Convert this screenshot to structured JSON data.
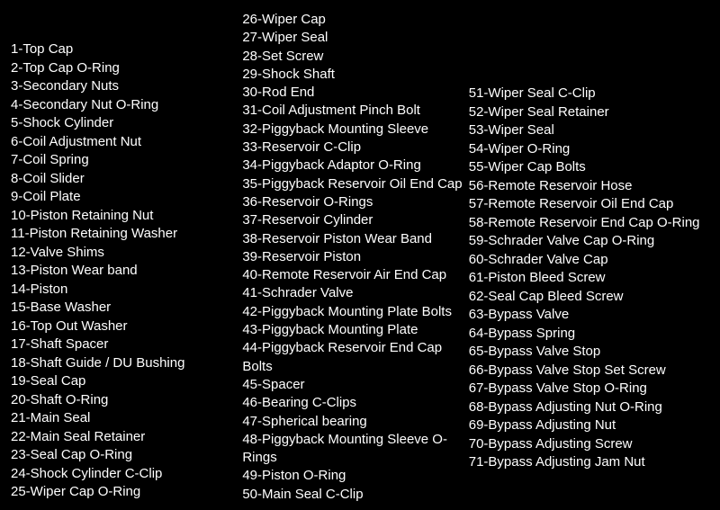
{
  "columns": [
    {
      "class": "col1",
      "items": [
        "1-Top Cap",
        "2-Top Cap O-Ring",
        "3-Secondary Nuts",
        "4-Secondary Nut O-Ring",
        "5-Shock Cylinder",
        "6-Coil Adjustment Nut",
        "7-Coil Spring",
        "8-Coil Slider",
        "9-Coil Plate",
        "10-Piston Retaining Nut",
        "11-Piston Retaining Washer",
        "12-Valve Shims",
        "13-Piston Wear band",
        "14-Piston",
        "15-Base Washer",
        "16-Top Out Washer",
        "17-Shaft Spacer",
        "18-Shaft Guide / DU Bushing",
        "19-Seal Cap",
        "20-Shaft O-Ring",
        "21-Main Seal",
        "22-Main Seal Retainer",
        "23-Seal Cap O-Ring",
        "24-Shock Cylinder C-Clip",
        "25-Wiper Cap O-Ring"
      ]
    },
    {
      "class": "col2",
      "items": [
        "26-Wiper Cap",
        "27-Wiper Seal",
        "28-Set Screw",
        "29-Shock Shaft",
        "30-Rod End",
        "31-Coil Adjustment Pinch Bolt",
        "32-Piggyback Mounting Sleeve",
        "33-Reservoir C-Clip",
        "34-Piggyback Adaptor O-Ring",
        "35-Piggyback Reservoir Oil End Cap",
        "36-Reservoir O-Rings",
        "37-Reservoir Cylinder",
        "38-Reservoir Piston Wear Band",
        "39-Reservoir Piston",
        "40-Remote Reservoir Air End Cap",
        "41-Schrader Valve",
        "42-Piggyback Mounting Plate Bolts",
        "43-Piggyback Mounting Plate",
        "44-Piggyback Reservoir End Cap Bolts",
        "45-Spacer",
        "46-Bearing C-Clips",
        "47-Spherical bearing",
        "48-Piggyback Mounting Sleeve O-Rings",
        "49-Piston O-Ring",
        "50-Main Seal C-Clip"
      ]
    },
    {
      "class": "col3",
      "items": [
        "51-Wiper Seal C-Clip",
        "52-Wiper Seal Retainer",
        "53-Wiper Seal",
        "54-Wiper O-Ring",
        "55-Wiper Cap Bolts",
        "56-Remote Reservoir Hose",
        "57-Remote Reservoir Oil End Cap",
        "58-Remote Reservoir End Cap O-Ring",
        "59-Schrader Valve Cap O-Ring",
        "60-Schrader Valve Cap",
        "61-Piston Bleed Screw",
        "62-Seal Cap Bleed Screw",
        "63-Bypass Valve",
        "64-Bypass Spring",
        "65-Bypass Valve Stop",
        "66-Bypass Valve Stop Set Screw",
        "67-Bypass Valve Stop O-Ring",
        "68-Bypass Adjusting Nut O-Ring",
        "69-Bypass Adjusting Nut",
        "70-Bypass Adjusting Screw",
        "71-Bypass Adjusting Jam Nut"
      ]
    }
  ]
}
